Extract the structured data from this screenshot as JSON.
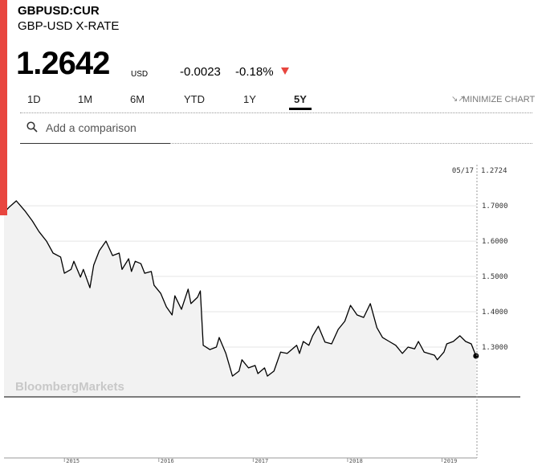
{
  "header": {
    "symbol": "GBPUSD:CUR",
    "name": "GBP-USD X-RATE",
    "price": "1.2642",
    "currency": "USD",
    "change": "-0.0023",
    "change_pct": "-0.18%"
  },
  "tabs": [
    "1D",
    "1M",
    "6M",
    "YTD",
    "1Y",
    "5Y"
  ],
  "active_tab": 5,
  "minimize": "MINIMIZE CHART",
  "search_placeholder": "Add a comparison",
  "chart_data": {
    "type": "line",
    "watermark": "BloombergMarkets",
    "crosshair": {
      "date": "05/17",
      "value": 1.2724
    },
    "color": "#000000",
    "fill": "#f2f2f2",
    "grid": true,
    "xlim": [
      2014.36,
      2019.37
    ],
    "xticks": [
      2015,
      2016,
      2017,
      2018,
      2019
    ],
    "ylim": [
      1.159,
      1.839
    ],
    "yticks": [
      {
        "value": 1.3,
        "label": "1.3000"
      },
      {
        "value": 1.4,
        "label": "1.4000"
      },
      {
        "value": 1.5,
        "label": "1.5000"
      },
      {
        "value": 1.6,
        "label": "1.6000"
      },
      {
        "value": 1.7,
        "label": "1.7000"
      }
    ],
    "x": [
      2014.36,
      2014.41,
      2014.49,
      2014.58,
      2014.66,
      2014.73,
      2014.81,
      2014.88,
      2014.96,
      2015.0,
      2015.07,
      2015.1,
      2015.17,
      2015.2,
      2015.27,
      2015.31,
      2015.37,
      2015.44,
      2015.51,
      2015.58,
      2015.61,
      2015.68,
      2015.71,
      2015.75,
      2015.81,
      2015.85,
      2015.92,
      2015.95,
      2016.02,
      2016.08,
      2016.14,
      2016.17,
      2016.24,
      2016.31,
      2016.34,
      2016.41,
      2016.44,
      2016.47,
      2016.54,
      2016.61,
      2016.64,
      2016.71,
      2016.78,
      2016.85,
      2016.88,
      2016.95,
      2017.02,
      2017.05,
      2017.12,
      2017.15,
      2017.22,
      2017.29,
      2017.36,
      2017.46,
      2017.49,
      2017.53,
      2017.59,
      2017.63,
      2017.69,
      2017.76,
      2017.83,
      2017.9,
      2017.97,
      2018.03,
      2018.1,
      2018.17,
      2018.24,
      2018.31,
      2018.37,
      2018.44,
      2018.51,
      2018.58,
      2018.64,
      2018.71,
      2018.75,
      2018.81,
      2018.92,
      2018.95,
      2019.02,
      2019.05,
      2019.12,
      2019.19,
      2019.25,
      2019.31,
      2019.36
    ],
    "values": [
      1.68,
      1.695,
      1.714,
      1.686,
      1.657,
      1.627,
      1.6,
      1.566,
      1.555,
      1.509,
      1.52,
      1.543,
      1.498,
      1.52,
      1.468,
      1.532,
      1.573,
      1.6,
      1.559,
      1.566,
      1.52,
      1.55,
      1.514,
      1.543,
      1.536,
      1.509,
      1.514,
      1.475,
      1.452,
      1.414,
      1.391,
      1.445,
      1.407,
      1.464,
      1.423,
      1.441,
      1.459,
      1.305,
      1.293,
      1.3,
      1.327,
      1.282,
      1.218,
      1.232,
      1.264,
      1.241,
      1.248,
      1.225,
      1.241,
      1.218,
      1.232,
      1.286,
      1.282,
      1.305,
      1.282,
      1.316,
      1.305,
      1.332,
      1.359,
      1.314,
      1.309,
      1.35,
      1.373,
      1.418,
      1.391,
      1.384,
      1.423,
      1.355,
      1.327,
      1.316,
      1.305,
      1.282,
      1.3,
      1.295,
      1.316,
      1.286,
      1.277,
      1.264,
      1.286,
      1.309,
      1.316,
      1.332,
      1.316,
      1.309,
      1.275
    ]
  }
}
